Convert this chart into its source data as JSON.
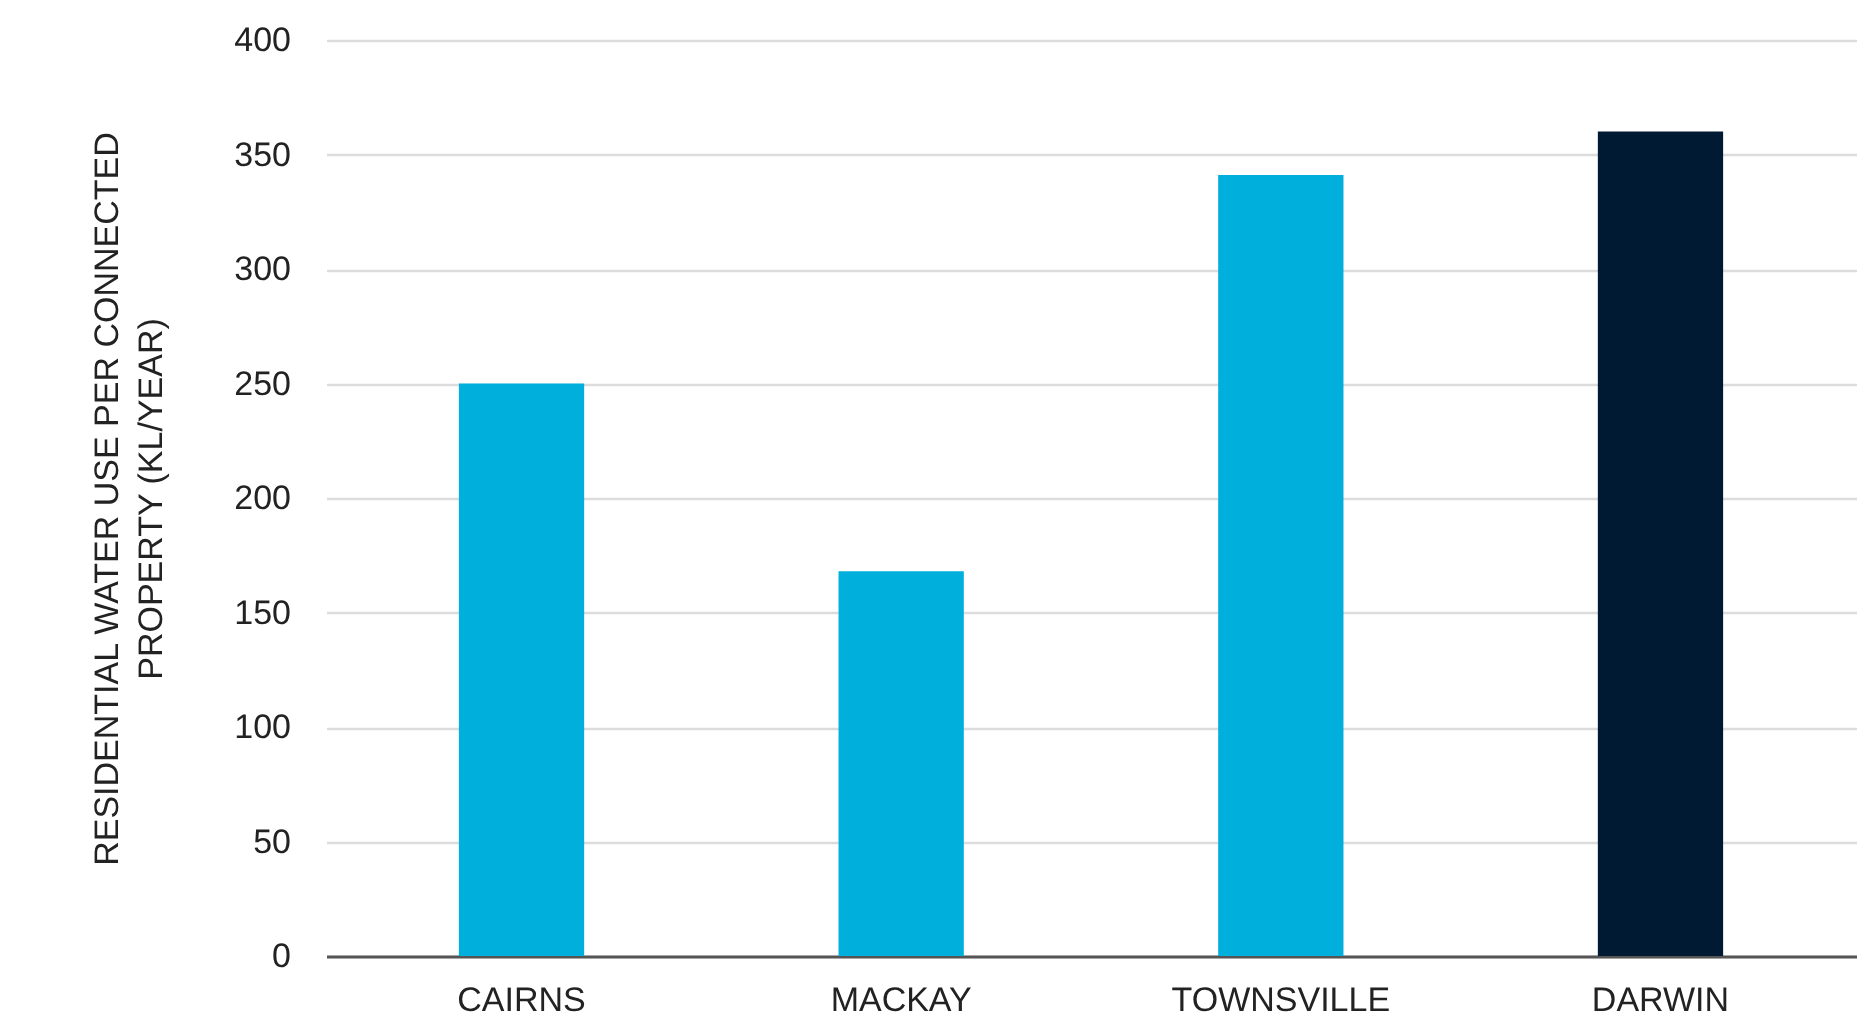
{
  "chart_data": {
    "type": "bar",
    "ylabel": "RESIDENTIAL WATER USE PER CONNECTED PROPERTY (KL/YEAR)",
    "categories": [
      "CAIRNS",
      "MACKAY",
      "TOWNSVILLE",
      "DARWIN"
    ],
    "values": [
      250,
      168,
      341,
      360
    ],
    "colors": [
      "#00afdb",
      "#00afdb",
      "#00afdb",
      "#001a33"
    ],
    "ylim": [
      0,
      400
    ],
    "yticks": [
      0,
      50,
      100,
      150,
      200,
      250,
      300,
      350,
      400
    ],
    "grid": "y"
  }
}
